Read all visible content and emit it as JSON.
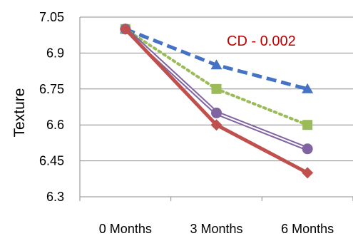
{
  "chart_data": {
    "type": "line",
    "ylabel": "Texture",
    "xlabel": "",
    "categories": [
      "0 Months",
      "3 Months",
      "6 Months"
    ],
    "ylim": [
      6.3,
      7.05
    ],
    "yticks": [
      "7.05",
      "6.9",
      "6.75",
      "6.6",
      "6.45",
      "6.3"
    ],
    "grid": true,
    "legend": "none",
    "annotation": "CD - 0.002",
    "series": [
      {
        "values": [
          7.0,
          6.85,
          6.75
        ],
        "color": "#4472c4",
        "style": "dashed",
        "marker": "triangle"
      },
      {
        "values": [
          7.0,
          6.75,
          6.6
        ],
        "color": "#9bbb59",
        "style": "dotted",
        "marker": "square"
      },
      {
        "values": [
          7.0,
          6.65,
          6.5
        ],
        "color": "#8064a2",
        "style": "double",
        "marker": "circle"
      },
      {
        "values": [
          7.0,
          6.6,
          6.4
        ],
        "color": "#c0504d",
        "style": "solid",
        "marker": "diamond"
      }
    ]
  }
}
